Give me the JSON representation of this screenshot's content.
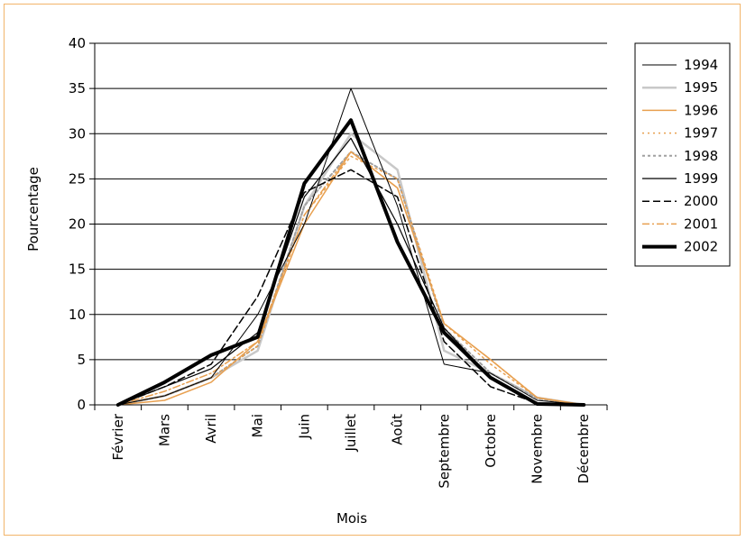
{
  "chart_data": {
    "type": "line",
    "title": "",
    "xlabel": "Mois",
    "ylabel": "Pourcentage",
    "ylim": [
      0,
      40
    ],
    "yticks": [
      "0",
      "5",
      "10",
      "15",
      "20",
      "25",
      "30",
      "35",
      "40"
    ],
    "categories": [
      "Février",
      "Mars",
      "Avril",
      "Mai",
      "Juin",
      "Juillet",
      "Août",
      "Septembre",
      "Octobre",
      "Novembre",
      "Décembre"
    ],
    "grid": "horizontal",
    "legend_position": "right",
    "series": [
      {
        "name": "1994",
        "color": "#000000",
        "width": 1,
        "dash": "",
        "values": [
          0,
          1,
          3,
          10,
          20,
          35,
          22,
          4.5,
          3.5,
          0.5,
          0
        ]
      },
      {
        "name": "1995",
        "color": "#c8c8c8",
        "width": 2.5,
        "dash": "",
        "values": [
          0,
          1,
          3,
          6,
          22,
          30,
          26,
          6,
          3.5,
          0.8,
          0
        ]
      },
      {
        "name": "1996",
        "color": "#e8a050",
        "width": 1.5,
        "dash": "",
        "values": [
          0,
          0.5,
          2.5,
          7,
          20,
          28,
          24,
          9,
          5,
          0.8,
          0
        ]
      },
      {
        "name": "1997",
        "color": "#e8a050",
        "width": 1.5,
        "dash": "2,4",
        "values": [
          0,
          1,
          3,
          6.5,
          21,
          27.5,
          25,
          9,
          4.5,
          0.8,
          0
        ]
      },
      {
        "name": "1998",
        "color": "#a0a0a0",
        "width": 2,
        "dash": "3,3",
        "values": [
          0,
          1,
          3,
          6.5,
          22,
          28,
          25,
          8.5,
          3.5,
          0.7,
          0
        ]
      },
      {
        "name": "1999",
        "color": "#000000",
        "width": 1.2,
        "dash": "",
        "values": [
          0,
          2,
          4,
          8,
          23,
          29.5,
          20,
          8.5,
          3,
          0.2,
          0
        ]
      },
      {
        "name": "2000",
        "color": "#000000",
        "width": 1.5,
        "dash": "8,4",
        "values": [
          0,
          2,
          4.5,
          12,
          23.5,
          26,
          23,
          7,
          2,
          0.2,
          0
        ]
      },
      {
        "name": "2001",
        "color": "#e8a050",
        "width": 1.5,
        "dash": "8,3,2,3",
        "values": [
          0,
          1.5,
          3.5,
          7,
          21,
          28,
          24,
          9,
          5,
          0.8,
          0
        ]
      },
      {
        "name": "2002",
        "color": "#000000",
        "width": 4,
        "dash": "",
        "values": [
          0,
          2.5,
          5.5,
          7.5,
          24.5,
          31.5,
          18,
          8,
          3,
          0.1,
          0
        ]
      }
    ]
  }
}
